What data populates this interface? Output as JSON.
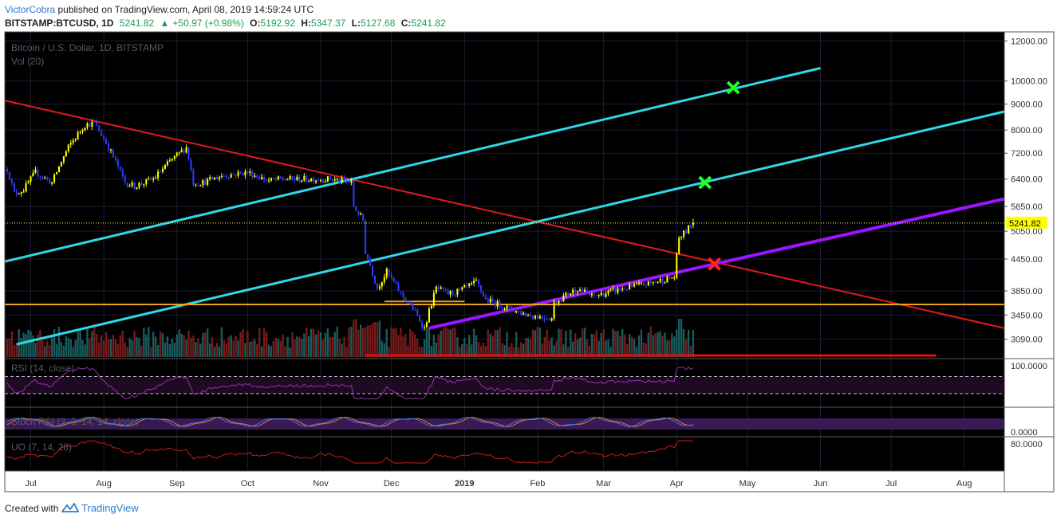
{
  "header": {
    "author": "VictorCobra",
    "published_text": "published on TradingView.com, April 08, 2019 14:59:24 UTC",
    "symbol": "BITSTAMP:BTCUSD, 1D",
    "last": "5241.82",
    "change_icon": "up-triangle-icon",
    "change": "+50.97 (+0.98%)",
    "o_label": "O:",
    "o_value": "5192.92",
    "h_label": "H:",
    "h_value": "5347.37",
    "l_label": "L:",
    "l_value": "5127.68",
    "c_label": "C:",
    "c_value": "5241.82"
  },
  "footer": {
    "created_with": "Created with",
    "brand": "TradingView",
    "logo_icon": "tradingview-logo-icon"
  },
  "colors": {
    "background": "#000000",
    "candle_up": "#ffff00",
    "candle_down": "#2b3cff",
    "trend_red": "#e11b1b",
    "channel_cyan": "#2fd8e8",
    "support_purple": "#9b16ff",
    "horizontal_orange": "#e8a21b",
    "rsi_purple": "#9b2fb0",
    "uo_red": "#cc1b1b",
    "marker_green": "#22ff22",
    "marker_red": "#ff2222"
  },
  "chart_data": {
    "type": "candlestick",
    "title": "Bitcoin / U.S. Dollar, 1D, BITSTAMP",
    "volume_label": "Vol (20)",
    "scale": "log",
    "ylim": [
      2850,
      12500
    ],
    "y_ticks": [
      "12000.00",
      "10000.00",
      "9000.00",
      "8000.00",
      "7200.00",
      "6400.00",
      "5650.00",
      "5050.00",
      "4450.00",
      "3850.00",
      "3450.00",
      "3090.00"
    ],
    "y_tick_values": [
      12000,
      10000,
      9000,
      8000,
      7200,
      6400,
      5650,
      5050,
      4450,
      3850,
      3450,
      3090
    ],
    "current_price_label": "5241.82",
    "current_price": 5241.82,
    "x_ticks": [
      "Jul",
      "Aug",
      "Sep",
      "Oct",
      "Nov",
      "Dec",
      "2019",
      "Feb",
      "Mar",
      "Apr",
      "May",
      "Jun",
      "Jul",
      "Aug"
    ],
    "x_tick_dates": [
      "2018-07-01",
      "2018-08-01",
      "2018-09-01",
      "2018-10-01",
      "2018-11-01",
      "2018-12-01",
      "2019-01-01",
      "2019-02-01",
      "2019-03-01",
      "2019-04-01",
      "2019-05-01",
      "2019-06-01",
      "2019-07-01",
      "2019-08-01"
    ],
    "price_anchors": [
      [
        "2018-06-21",
        6700
      ],
      [
        "2018-06-24",
        6000
      ],
      [
        "2018-06-28",
        6100
      ],
      [
        "2018-07-03",
        6600
      ],
      [
        "2018-07-10",
        6300
      ],
      [
        "2018-07-17",
        7400
      ],
      [
        "2018-07-24",
        8200
      ],
      [
        "2018-07-28",
        8250
      ],
      [
        "2018-08-03",
        7400
      ],
      [
        "2018-08-10",
        6300
      ],
      [
        "2018-08-14",
        6200
      ],
      [
        "2018-08-22",
        6400
      ],
      [
        "2018-08-30",
        7000
      ],
      [
        "2018-09-05",
        7400
      ],
      [
        "2018-09-08",
        6300
      ],
      [
        "2018-09-12",
        6300
      ],
      [
        "2018-09-20",
        6500
      ],
      [
        "2018-10-01",
        6600
      ],
      [
        "2018-10-10",
        6350
      ],
      [
        "2018-10-15",
        6400
      ],
      [
        "2018-11-05",
        6400
      ],
      [
        "2018-11-14",
        6300
      ],
      [
        "2018-11-15",
        5650
      ],
      [
        "2018-11-19",
        5300
      ],
      [
        "2018-11-20",
        4600
      ],
      [
        "2018-11-25",
        3900
      ],
      [
        "2018-11-29",
        4200
      ],
      [
        "2018-12-05",
        3800
      ],
      [
        "2018-12-10",
        3550
      ],
      [
        "2018-12-15",
        3250
      ],
      [
        "2018-12-20",
        3900
      ],
      [
        "2018-12-25",
        3800
      ],
      [
        "2018-12-30",
        3850
      ],
      [
        "2019-01-06",
        4000
      ],
      [
        "2019-01-10",
        3700
      ],
      [
        "2019-01-20",
        3550
      ],
      [
        "2019-01-28",
        3450
      ],
      [
        "2019-02-07",
        3400
      ],
      [
        "2019-02-08",
        3650
      ],
      [
        "2019-02-18",
        3900
      ],
      [
        "2019-02-24",
        3750
      ],
      [
        "2019-03-10",
        3900
      ],
      [
        "2019-03-20",
        3980
      ],
      [
        "2019-03-31",
        4100
      ],
      [
        "2019-04-02",
        4900
      ],
      [
        "2019-04-05",
        5050
      ],
      [
        "2019-04-08",
        5241.82
      ]
    ],
    "lines": [
      {
        "name": "",
        "color": "trend_red",
        "from": [
          "2018-06-20",
          9150
        ],
        "to": [
          "2019-08-18",
          3250
        ]
      },
      {
        "name": "",
        "color": "channel_cyan",
        "from": [
          "2018-06-20",
          4400
        ],
        "to": [
          "2019-06-01",
          10600
        ]
      },
      {
        "name": "",
        "color": "channel_cyan",
        "from": [
          "2018-06-25",
          3020
        ],
        "to": [
          "2019-08-18",
          8700
        ]
      },
      {
        "name": "",
        "color": "support_purple",
        "from": [
          "2018-12-17",
          3250
        ],
        "to": [
          "2019-08-18",
          5850
        ]
      },
      {
        "name": "",
        "color": "horizontal_orange",
        "from": [
          "2018-06-20",
          3620
        ],
        "to": [
          "2019-08-18",
          3620
        ]
      },
      {
        "name": "",
        "color": "horizontal_orange",
        "from": [
          "2018-11-28",
          3670
        ],
        "to": [
          "2019-01-01",
          3670
        ]
      }
    ],
    "markers": [
      {
        "shape": "x",
        "color": "marker_green",
        "date": "2019-04-25",
        "price": 9700
      },
      {
        "shape": "x",
        "color": "marker_green",
        "date": "2019-04-13",
        "price": 6300
      },
      {
        "shape": "x",
        "color": "marker_red",
        "date": "2019-04-17",
        "price": 4350
      }
    ],
    "panes": [
      {
        "name": "RSI (14, close)",
        "y_ticks": [
          "100.0000"
        ],
        "bands": [
          70,
          30
        ]
      },
      {
        "name": "Stoch RSI (3, 3, 14, 14, close)",
        "y_ticks": [
          "0.0000"
        ]
      },
      {
        "name": "UO (7, 14, 28)",
        "y_ticks": [
          "80.0000"
        ]
      }
    ]
  }
}
